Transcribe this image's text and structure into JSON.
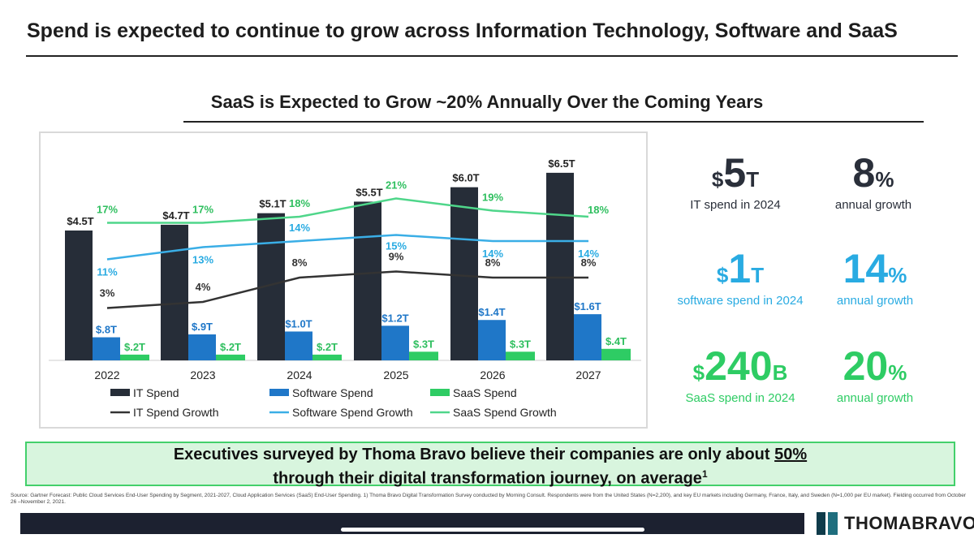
{
  "page": {
    "title": "Spend is expected to continue to grow across Information Technology, Software and SaaS",
    "subtitle": "SaaS is Expected to Grow ~20% Annually Over the Coming Years"
  },
  "colors": {
    "it": "#262d38",
    "software": "#1f77c8",
    "saas": "#2ecc64",
    "it_line": "#333333",
    "software_line": "#3aaee6",
    "saas_line": "#4fd68a",
    "kpi_dark": "#2a2f3a",
    "kpi_blue": "#29abe2",
    "kpi_green": "#2ecc64"
  },
  "chart_data": {
    "type": "bar",
    "categories": [
      "2022",
      "2023",
      "2024",
      "2025",
      "2026",
      "2027"
    ],
    "series": [
      {
        "name": "IT Spend",
        "kind": "bar",
        "values": [
          4.5,
          4.7,
          5.1,
          5.5,
          6.0,
          6.5
        ],
        "labels": [
          "$4.5T",
          "$4.7T",
          "$5.1T",
          "$5.5T",
          "$6.0T",
          "$6.5T"
        ]
      },
      {
        "name": "Software Spend",
        "kind": "bar",
        "values": [
          0.8,
          0.9,
          1.0,
          1.2,
          1.4,
          1.6
        ],
        "labels": [
          "$.8T",
          "$.9T",
          "$1.0T",
          "$1.2T",
          "$1.4T",
          "$1.6T"
        ]
      },
      {
        "name": "SaaS Spend",
        "kind": "bar",
        "values": [
          0.2,
          0.2,
          0.2,
          0.3,
          0.3,
          0.4
        ],
        "labels": [
          "$.2T",
          "$.2T",
          "$.2T",
          "$.3T",
          "$.3T",
          "$.4T"
        ]
      },
      {
        "name": "IT Spend Growth",
        "kind": "line",
        "values": [
          3,
          4,
          8,
          9,
          8,
          8
        ],
        "labels": [
          "3%",
          "4%",
          "8%",
          "9%",
          "8%",
          "8%"
        ]
      },
      {
        "name": "Software Spend Growth",
        "kind": "line",
        "values": [
          11,
          13,
          14,
          15,
          14,
          14
        ],
        "labels": [
          "11%",
          "13%",
          "14%",
          "15%",
          "14%",
          "14%"
        ]
      },
      {
        "name": "SaaS Spend Growth",
        "kind": "line",
        "values": [
          17,
          17,
          18,
          21,
          19,
          18
        ],
        "labels": [
          "17%",
          "17%",
          "18%",
          "21%",
          "19%",
          "18%"
        ]
      }
    ],
    "legend": [
      "IT Spend",
      "Software Spend",
      "SaaS Spend",
      "IT Spend Growth",
      "Software Spend Growth",
      "SaaS Spend Growth"
    ],
    "legend_position": "bottom",
    "ylim_spend": [
      0,
      7
    ],
    "grid": false
  },
  "kpis": [
    {
      "prefix": "$",
      "value": "5",
      "suffix": "T",
      "caption": "IT spend in 2024",
      "color": "#2a2f3a"
    },
    {
      "prefix": "",
      "value": "8",
      "suffix": "%",
      "caption": "annual growth",
      "color": "#2a2f3a"
    },
    {
      "prefix": "$",
      "value": "1",
      "suffix": "T",
      "caption": "software spend in 2024",
      "color": "#29abe2"
    },
    {
      "prefix": "",
      "value": "14",
      "suffix": "%",
      "caption": "annual growth",
      "color": "#29abe2"
    },
    {
      "prefix": "$",
      "value": "240",
      "suffix": "B",
      "caption": "SaaS spend in 2024",
      "color": "#2ecc64"
    },
    {
      "prefix": "",
      "value": "20",
      "suffix": "%",
      "caption": "annual growth",
      "color": "#2ecc64"
    }
  ],
  "banner": {
    "line1_pre": "Executives surveyed by Thoma Bravo believe their companies are only about ",
    "line1_emph": "50%",
    "line2": "through their digital transformation journey, on average",
    "footnote_mark": "1"
  },
  "source": "Source: Gartner Forecast: Public Cloud Services End-User Spending by Segment, 2021-2027, Cloud Application Services (SaaS) End-User Spending. 1) Thoma Bravo Digital Transformation Survey conducted by Morning Consult. Respondents were from the United States (N=2,200), and key EU markets including Germany, France, Italy, and Sweden (N=1,000 per EU market). Fielding occurred from October 26 –November 2, 2021.",
  "logo": {
    "text": "THOMABRAVO"
  }
}
